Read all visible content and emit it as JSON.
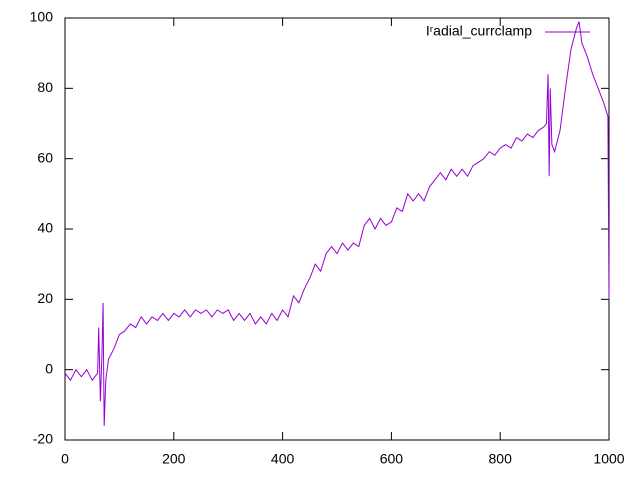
{
  "chart_data": {
    "type": "line",
    "xlim": [
      0,
      1000
    ],
    "xticks": [
      0,
      200,
      400,
      600,
      800,
      1000
    ],
    "ylim": [
      -20,
      100
    ],
    "yticks": [
      -20,
      0,
      20,
      40,
      60,
      80,
      100
    ],
    "legend": "top-right",
    "x": [
      0,
      10,
      20,
      30,
      40,
      50,
      60,
      62,
      65,
      68,
      70,
      72,
      75,
      80,
      90,
      100,
      110,
      120,
      130,
      140,
      150,
      160,
      170,
      180,
      190,
      200,
      210,
      220,
      230,
      240,
      250,
      260,
      270,
      280,
      290,
      300,
      310,
      320,
      330,
      340,
      350,
      360,
      370,
      380,
      390,
      400,
      410,
      420,
      430,
      440,
      450,
      460,
      470,
      480,
      490,
      500,
      510,
      520,
      530,
      540,
      550,
      560,
      570,
      580,
      590,
      600,
      610,
      620,
      630,
      640,
      650,
      660,
      670,
      680,
      690,
      700,
      710,
      720,
      730,
      740,
      750,
      760,
      770,
      780,
      790,
      800,
      810,
      820,
      830,
      840,
      850,
      860,
      870,
      880,
      885,
      888,
      890,
      892,
      895,
      900,
      910,
      920,
      930,
      940,
      945,
      950,
      960,
      970,
      980,
      990,
      998,
      1000
    ],
    "series": [
      {
        "name": "Iʳadial_currclamp",
        "color": "#9400d3",
        "values": [
          -1,
          -3,
          0,
          -2,
          0,
          -3,
          -1,
          12,
          -9,
          5,
          19,
          -16,
          -3,
          3,
          6,
          10,
          11,
          13,
          12,
          15,
          13,
          15,
          14,
          16,
          14,
          16,
          15,
          17,
          15,
          17,
          16,
          17,
          15,
          17,
          16,
          17,
          14,
          16,
          14,
          16,
          13,
          15,
          13,
          16,
          14,
          17,
          15,
          21,
          19,
          23,
          26,
          30,
          28,
          33,
          35,
          33,
          36,
          34,
          36,
          35,
          41,
          43,
          40,
          43,
          41,
          42,
          46,
          45,
          50,
          48,
          50,
          48,
          52,
          54,
          56,
          54,
          57,
          55,
          57,
          55,
          58,
          59,
          60,
          62,
          61,
          63,
          64,
          63,
          66,
          65,
          67,
          66,
          68,
          69,
          70,
          84,
          55,
          80,
          64,
          62,
          68,
          80,
          91,
          97,
          99,
          93,
          89,
          84,
          80,
          76,
          72,
          20
        ]
      }
    ]
  }
}
